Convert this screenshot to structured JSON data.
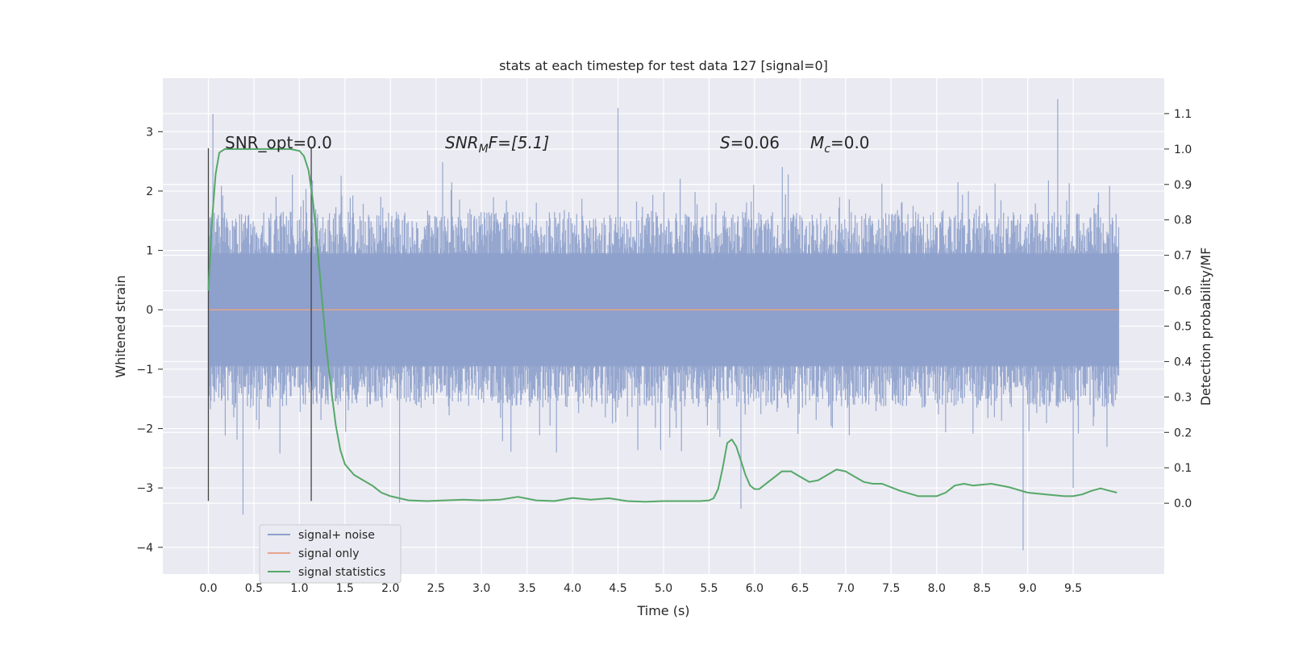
{
  "chart_data": {
    "type": "line",
    "title": "stats at each timestep for test data 127 [signal=0]",
    "xlabel": "Time (s)",
    "ylabel": "Whitened strain",
    "y2label": "Detection probability/MF",
    "xlim": [
      -0.5,
      10.5
    ],
    "ylim": [
      -4.45,
      3.9
    ],
    "y2lim": [
      -0.2,
      1.2
    ],
    "xticks": [
      0.0,
      0.5,
      1.0,
      1.5,
      2.0,
      2.5,
      3.0,
      3.5,
      4.0,
      4.5,
      5.0,
      5.5,
      6.0,
      6.5,
      7.0,
      7.5,
      8.0,
      8.5,
      9.0,
      9.5
    ],
    "xtick_labels": [
      "0.0",
      "0.5",
      "1.0",
      "1.5",
      "2.0",
      "2.5",
      "3.0",
      "3.5",
      "4.0",
      "4.5",
      "5.0",
      "5.5",
      "6.0",
      "6.5",
      "7.0",
      "7.5",
      "8.0",
      "8.5",
      "9.0",
      "9.5"
    ],
    "yticks": [
      -4,
      -3,
      -2,
      -1,
      0,
      1,
      2,
      3
    ],
    "ytick_labels": [
      "−4",
      "−3",
      "−2",
      "−1",
      "0",
      "1",
      "2",
      "3"
    ],
    "y2ticks": [
      0.0,
      0.1,
      0.2,
      0.3,
      0.4,
      0.5,
      0.6,
      0.7,
      0.8,
      0.9,
      1.0,
      1.1
    ],
    "y2tick_labels": [
      "0.0",
      "0.1",
      "0.2",
      "0.3",
      "0.4",
      "0.5",
      "0.6",
      "0.7",
      "0.8",
      "0.9",
      "1.0",
      "1.1"
    ],
    "grid": true,
    "legend_position": "lower-left",
    "annotations": {
      "snr_opt": "SNR_opt=0.0",
      "snr_mf_main": "SNR",
      "snr_mf_sub": "M",
      "snr_mf_tail": "F=[5.1]",
      "s_sym": "S",
      "s_val": "=0.06",
      "mc_sym": "M",
      "mc_sub": "c",
      "mc_val": "=0.0"
    },
    "vertical_markers": [
      0.0,
      1.13
    ],
    "series": [
      {
        "name": "signal+ noise",
        "color": "#8da0cb",
        "x_range": [
          0.0,
          10.0
        ],
        "typical_amplitude": 1.5,
        "extreme_low": -4.05,
        "extreme_high": 3.55,
        "peaks": [
          [
            0.05,
            3.3
          ],
          [
            0.38,
            -3.45
          ],
          [
            4.5,
            3.4
          ],
          [
            5.85,
            -3.35
          ],
          [
            8.95,
            -4.05
          ],
          [
            9.33,
            3.55
          ],
          [
            2.1,
            -3.25
          ],
          [
            9.5,
            -3.0
          ]
        ]
      },
      {
        "name": "signal only",
        "color": "#e5a38a",
        "x": [
          0.0,
          10.0
        ],
        "y": [
          0.0,
          0.0
        ]
      },
      {
        "name": "signal statistics",
        "color": "#55a868",
        "axis": "right",
        "x": [
          0.0,
          0.04,
          0.08,
          0.12,
          0.18,
          0.25,
          0.35,
          0.5,
          0.7,
          0.9,
          1.0,
          1.05,
          1.1,
          1.15,
          1.2,
          1.25,
          1.3,
          1.35,
          1.4,
          1.45,
          1.5,
          1.6,
          1.7,
          1.8,
          1.9,
          2.0,
          2.2,
          2.4,
          2.6,
          2.8,
          3.0,
          3.2,
          3.4,
          3.6,
          3.8,
          4.0,
          4.2,
          4.4,
          4.6,
          4.8,
          5.0,
          5.2,
          5.4,
          5.5,
          5.55,
          5.6,
          5.65,
          5.7,
          5.75,
          5.8,
          5.85,
          5.9,
          5.95,
          6.0,
          6.05,
          6.1,
          6.2,
          6.3,
          6.4,
          6.5,
          6.6,
          6.7,
          6.8,
          6.9,
          7.0,
          7.1,
          7.2,
          7.3,
          7.4,
          7.6,
          7.8,
          8.0,
          8.1,
          8.2,
          8.3,
          8.4,
          8.6,
          8.8,
          9.0,
          9.2,
          9.4,
          9.5,
          9.6,
          9.7,
          9.8,
          9.9,
          9.98
        ],
        "y": [
          0.6,
          0.8,
          0.93,
          0.99,
          1.0,
          1.0,
          1.0,
          1.0,
          1.0,
          1.0,
          0.995,
          0.98,
          0.94,
          0.85,
          0.72,
          0.57,
          0.43,
          0.32,
          0.22,
          0.15,
          0.11,
          0.08,
          0.065,
          0.05,
          0.03,
          0.02,
          0.008,
          0.006,
          0.008,
          0.01,
          0.008,
          0.01,
          0.018,
          0.008,
          0.006,
          0.015,
          0.01,
          0.014,
          0.006,
          0.004,
          0.006,
          0.006,
          0.006,
          0.008,
          0.014,
          0.04,
          0.1,
          0.17,
          0.18,
          0.16,
          0.12,
          0.08,
          0.05,
          0.04,
          0.04,
          0.05,
          0.07,
          0.09,
          0.09,
          0.075,
          0.06,
          0.065,
          0.08,
          0.095,
          0.09,
          0.075,
          0.06,
          0.055,
          0.055,
          0.035,
          0.02,
          0.02,
          0.03,
          0.05,
          0.055,
          0.05,
          0.055,
          0.045,
          0.03,
          0.025,
          0.02,
          0.02,
          0.025,
          0.035,
          0.042,
          0.035,
          0.03
        ]
      }
    ]
  }
}
